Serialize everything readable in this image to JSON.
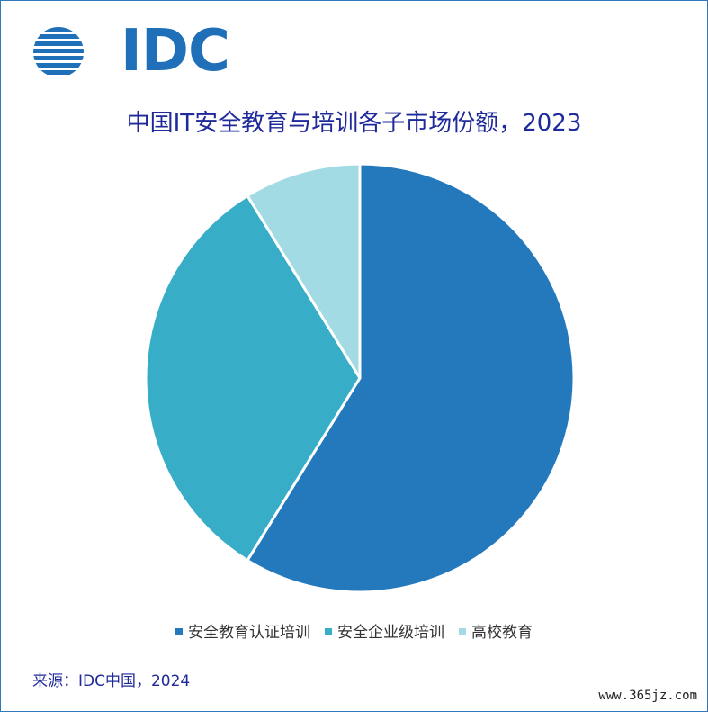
{
  "logo": {
    "text": "IDC",
    "color": "#1f70b8"
  },
  "chart_data": {
    "type": "pie",
    "title": "中国IT安全教育与培训各子市场份额，2023",
    "categories": [
      "安全教育认证培训",
      "安全企业级培训",
      "高校教育"
    ],
    "values": [
      58.8,
      32.4,
      8.8
    ],
    "colors": [
      "#2479bd",
      "#37adc7",
      "#a3dbe5"
    ],
    "legend_position": "bottom"
  },
  "source": "来源：IDC中国，2024",
  "watermark": "www.365jz.com",
  "colors": {
    "border": "#2f78be",
    "title": "#1f2a9a"
  }
}
